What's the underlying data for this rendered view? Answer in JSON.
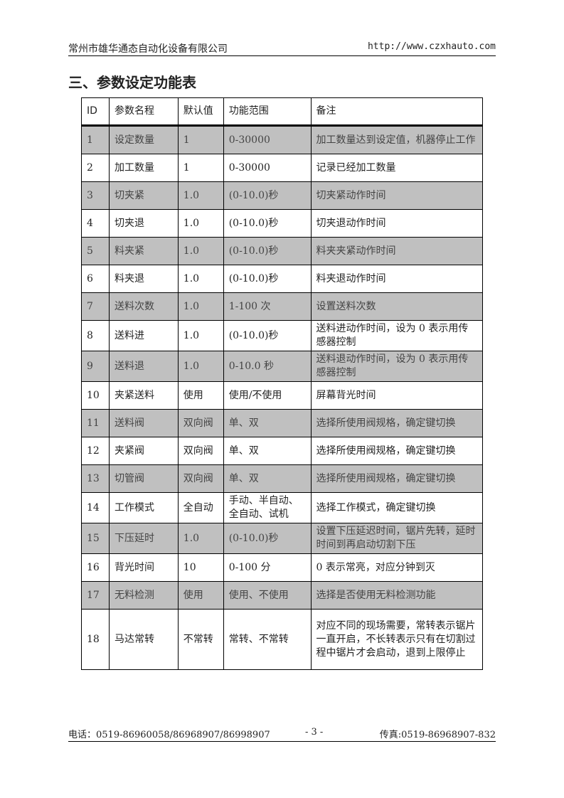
{
  "header": {
    "company": "常州市雄华通态自动化设备有限公司",
    "url": "http://www.czxhauto.com"
  },
  "title": "三、参数设定功能表",
  "table": {
    "columns": [
      "ID",
      "参数名程",
      "默认值",
      "功能范围",
      "备注"
    ],
    "rows": [
      [
        "1",
        "设定数量",
        "1",
        "0-30000",
        "加工数量达到设定值，机器停止工作"
      ],
      [
        "2",
        "加工数量",
        "1",
        "0-30000",
        "记录已经加工数量"
      ],
      [
        "3",
        "切夹紧",
        "1.0",
        "(0-10.0)秒",
        "切夹紧动作时间"
      ],
      [
        "4",
        "切夹退",
        "1.0",
        "(0-10.0)秒",
        "切夹退动作时间"
      ],
      [
        "5",
        "料夹紧",
        "1.0",
        "(0-10.0)秒",
        "料夹夹紧动作时间"
      ],
      [
        "6",
        "料夹退",
        "1.0",
        "(0-10.0)秒",
        "料夹退动作时间"
      ],
      [
        "7",
        "送料次数",
        "1.0",
        "1-100 次",
        "设置送料次数"
      ],
      [
        "8",
        "送料进",
        "1.0",
        "(0-10.0)秒",
        "送料进动作时间，设为 0 表示用传感器控制"
      ],
      [
        "9",
        "送料退",
        "1.0",
        "0-10.0 秒",
        "送料退动作时间，设为 0 表示用传感器控制"
      ],
      [
        "10",
        "夹紧送料",
        "使用",
        "使用/不使用",
        "屏幕背光时间"
      ],
      [
        "11",
        "送料阀",
        "双向阀",
        "单、双",
        "选择所使用阀规格，确定键切换"
      ],
      [
        "12",
        "夹紧阀",
        "双向阀",
        "单、双",
        "选择所使用阀规格，确定键切换"
      ],
      [
        "13",
        "切管阀",
        "双向阀",
        "单、双",
        "选择所使用阀规格，确定键切换"
      ],
      [
        "14",
        "工作模式",
        "全自动",
        "手动、半自动、全自动、试机",
        "选择工作模式，确定键切换"
      ],
      [
        "15",
        "下压延时",
        "1.0",
        "(0-10.0)秒",
        "设置下压延迟时间，锯片先转，延时时间到再启动切割下压"
      ],
      [
        "16",
        "背光时间",
        "10",
        "0-100 分",
        "0 表示常亮，对应分钟到灭"
      ],
      [
        "17",
        "无料检测",
        "使用",
        "使用、不使用",
        "选择是否使用无料检测功能"
      ],
      [
        "18",
        "马达常转",
        "不常转",
        "常转、不常转",
        "对应不同的现场需要，常转表示锯片一直开启，不长转表示只有在切割过程中锯片才会启动，退到上限停止"
      ]
    ]
  },
  "footer": {
    "phone": "电话：0519-86960058/86968907/86998907",
    "page": "- 3 -",
    "fax": "传真:0519-86968907-832"
  },
  "colors": {
    "shaded_row": "#c0c0c0"
  }
}
